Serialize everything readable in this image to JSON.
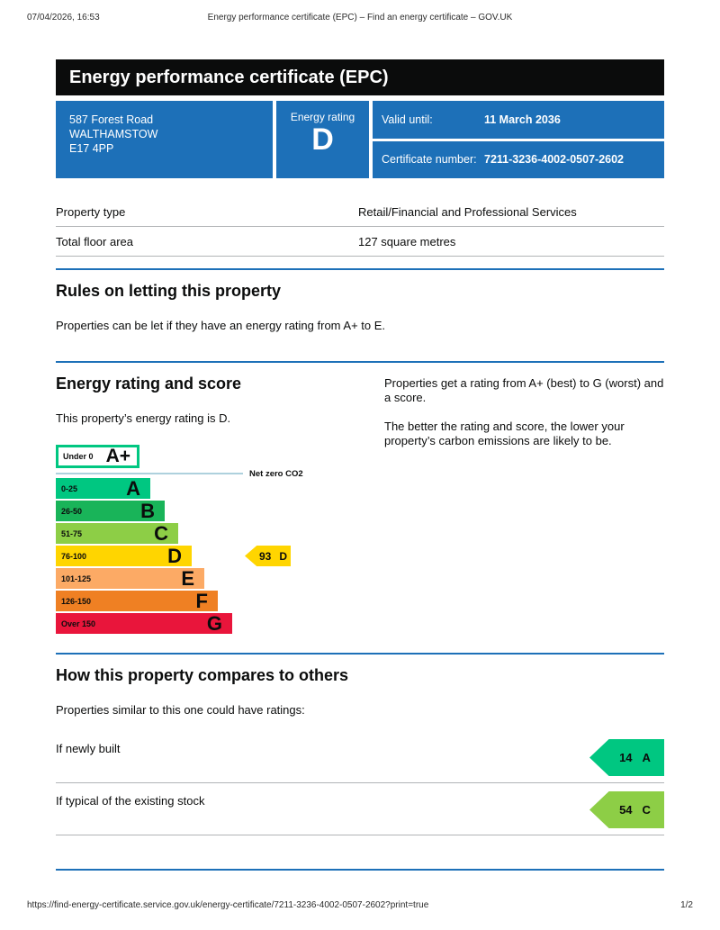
{
  "print_header": {
    "datetime": "07/04/2026, 16:53",
    "title": "Energy performance certificate (EPC) – Find an energy certificate – GOV.UK"
  },
  "print_footer": {
    "url": "https://find-energy-certificate.service.gov.uk/energy-certificate/7211-3236-4002-0507-2602?print=true",
    "page": "1/2"
  },
  "banner": {
    "title": "Energy performance certificate (EPC)"
  },
  "summary": {
    "address_line1": "587 Forest Road",
    "address_line2": "WALTHAMSTOW",
    "address_line3": "E17 4PP",
    "energy_rating_label": "Energy rating",
    "energy_rating": "D",
    "valid_until_label": "Valid until:",
    "valid_until": "11 March 2036",
    "certificate_number_label": "Certificate number:",
    "certificate_number": "7211-3236-4002-0507-2602",
    "box_color": "#1d70b8"
  },
  "property_table": {
    "rows": [
      {
        "label": "Property type",
        "value": "Retail/Financial and Professional Services"
      },
      {
        "label": "Total floor area",
        "value": "127 square metres"
      }
    ]
  },
  "rules_section": {
    "heading": "Rules on letting this property",
    "body": "Properties can be let if they have an energy rating from A+ to E."
  },
  "rating_section": {
    "heading": "Energy rating and score",
    "intro": "This property’s energy rating is D.",
    "aside1": "Properties get a rating from A+ (best) to G (worst) and a score.",
    "aside2": "The better the rating and score, the lower your property’s carbon emissions are likely to be."
  },
  "chart_data": {
    "type": "bar",
    "title": "Energy rating and score scale",
    "this_rating": "D",
    "this_score": 93,
    "net_zero_label": "Net zero CO2",
    "bands": [
      {
        "letter": "A+",
        "range": "Under 0",
        "color": "#ffffff",
        "border_color": "#00c781"
      },
      {
        "letter": "A",
        "range": "0-25",
        "color": "#00c781"
      },
      {
        "letter": "B",
        "range": "26-50",
        "color": "#19b459"
      },
      {
        "letter": "C",
        "range": "51-75",
        "color": "#8dce46"
      },
      {
        "letter": "D",
        "range": "76-100",
        "color": "#ffd500"
      },
      {
        "letter": "E",
        "range": "101-125",
        "color": "#fcaa65"
      },
      {
        "letter": "F",
        "range": "126-150",
        "color": "#ef8023"
      },
      {
        "letter": "G",
        "range": "Over 150",
        "color": "#e9153b"
      }
    ],
    "marker": {
      "score": "93",
      "letter": "D",
      "color": "#ffd500"
    }
  },
  "compare_section": {
    "heading": "How this property compares to others",
    "intro": "Properties similar to this one could have ratings:",
    "rows": [
      {
        "label": "If newly built",
        "score": "14",
        "letter": "A",
        "color": "#00c781"
      },
      {
        "label": "If typical of the existing stock",
        "score": "54",
        "letter": "C",
        "color": "#8dce46"
      }
    ]
  }
}
